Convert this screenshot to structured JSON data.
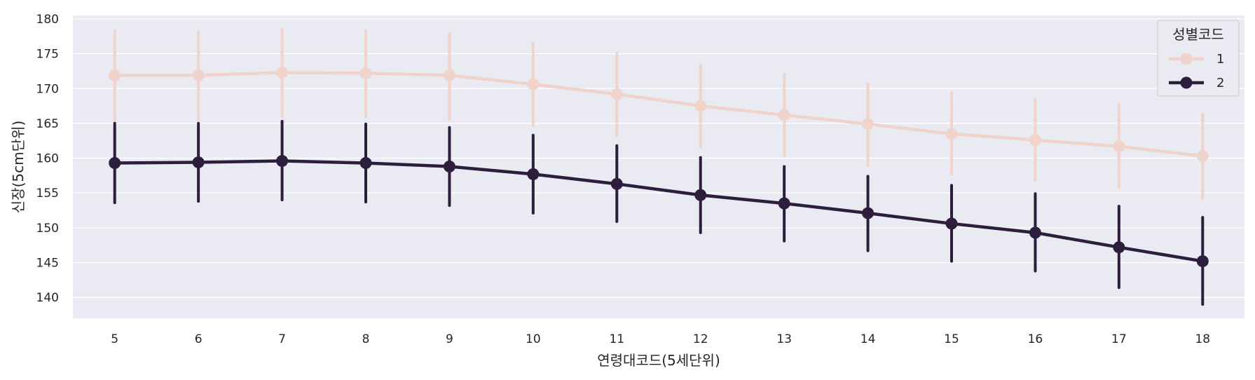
{
  "chart_data": {
    "type": "line",
    "title": "",
    "xlabel": "연령대코드(5세단위)",
    "ylabel": "신장(5cm단위)",
    "categories": [
      "5",
      "6",
      "7",
      "8",
      "9",
      "10",
      "11",
      "12",
      "13",
      "14",
      "15",
      "16",
      "17",
      "18"
    ],
    "ylim": [
      137,
      180.5
    ],
    "yticks": [
      "140",
      "145",
      "150",
      "155",
      "160",
      "165",
      "170",
      "175",
      "180"
    ],
    "grid": true,
    "legend": {
      "title": "성별코드",
      "placement": "top-right"
    },
    "series": [
      {
        "name": "1",
        "color": "#f0d4cc",
        "values": [
          171.9,
          171.9,
          172.3,
          172.2,
          171.9,
          170.6,
          169.2,
          167.5,
          166.2,
          164.9,
          163.5,
          162.6,
          161.7,
          160.3
        ],
        "ci_low": [
          165.3,
          165.5,
          166.0,
          166.0,
          165.6,
          164.6,
          163.3,
          161.6,
          160.4,
          159.0,
          157.7,
          156.8,
          155.8,
          154.2
        ],
        "ci_high": [
          178.3,
          178.1,
          178.5,
          178.3,
          177.9,
          176.5,
          175.1,
          173.4,
          172.1,
          170.7,
          169.4,
          168.4,
          167.7,
          166.3
        ]
      },
      {
        "name": "2",
        "color": "#2d1e3e",
        "values": [
          159.3,
          159.4,
          159.6,
          159.3,
          158.8,
          157.7,
          156.3,
          154.7,
          153.5,
          152.1,
          150.6,
          149.3,
          147.2,
          145.2
        ],
        "ci_low": [
          153.6,
          153.8,
          154.0,
          153.7,
          153.2,
          152.1,
          150.9,
          149.3,
          148.1,
          146.7,
          145.2,
          143.8,
          141.4,
          139.0
        ],
        "ci_high": [
          165.0,
          165.0,
          165.3,
          164.9,
          164.4,
          163.3,
          161.8,
          160.1,
          158.8,
          157.4,
          156.1,
          154.9,
          153.1,
          151.5
        ]
      }
    ]
  }
}
